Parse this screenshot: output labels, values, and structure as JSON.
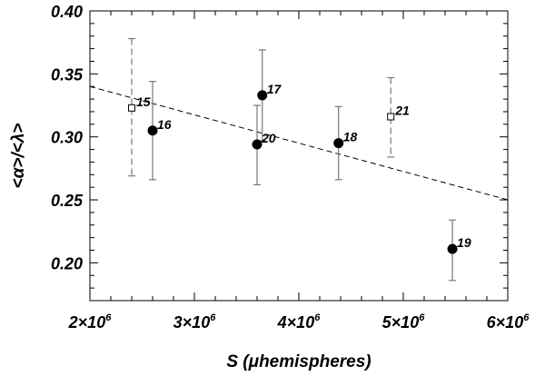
{
  "chart_data": {
    "type": "scatter",
    "title": "",
    "xlabel": "S (μhemispheres)",
    "ylabel": "<α>/<λ>",
    "xlim": [
      2000000,
      6000000
    ],
    "ylim": [
      0.17,
      0.4
    ],
    "xticks": [
      {
        "value": 2000000,
        "mantissa": "2×10",
        "exp": "6"
      },
      {
        "value": 3000000,
        "mantissa": "3×10",
        "exp": "6"
      },
      {
        "value": 4000000,
        "mantissa": "4×10",
        "exp": "6"
      },
      {
        "value": 5000000,
        "mantissa": "5×10",
        "exp": "6"
      },
      {
        "value": 6000000,
        "mantissa": "6×10",
        "exp": "6"
      }
    ],
    "yticks": [
      {
        "value": 0.2,
        "label": "0.20"
      },
      {
        "value": 0.25,
        "label": "0.25"
      },
      {
        "value": 0.3,
        "label": "0.30"
      },
      {
        "value": 0.35,
        "label": "0.35"
      },
      {
        "value": 0.4,
        "label": "0.40"
      }
    ],
    "grid": false,
    "fit_line": {
      "x": [
        2000000,
        6000000
      ],
      "y": [
        0.34,
        0.25
      ]
    },
    "points": [
      {
        "label": "15",
        "x": 2400000,
        "y": 0.323,
        "err_low": 0.269,
        "err_high": 0.378,
        "marker": "square"
      },
      {
        "label": "16",
        "x": 2600000,
        "y": 0.305,
        "err_low": 0.266,
        "err_high": 0.344,
        "marker": "circle"
      },
      {
        "label": "17",
        "x": 3650000,
        "y": 0.333,
        "err_low": 0.297,
        "err_high": 0.369,
        "marker": "circle"
      },
      {
        "label": "20",
        "x": 3600000,
        "y": 0.294,
        "err_low": 0.262,
        "err_high": 0.325,
        "marker": "circle"
      },
      {
        "label": "18",
        "x": 4380000,
        "y": 0.295,
        "err_low": 0.266,
        "err_high": 0.324,
        "marker": "circle"
      },
      {
        "label": "21",
        "x": 4880000,
        "y": 0.316,
        "err_low": 0.284,
        "err_high": 0.347,
        "marker": "square"
      },
      {
        "label": "19",
        "x": 5470000,
        "y": 0.211,
        "err_low": 0.186,
        "err_high": 0.234,
        "marker": "circle"
      }
    ]
  }
}
